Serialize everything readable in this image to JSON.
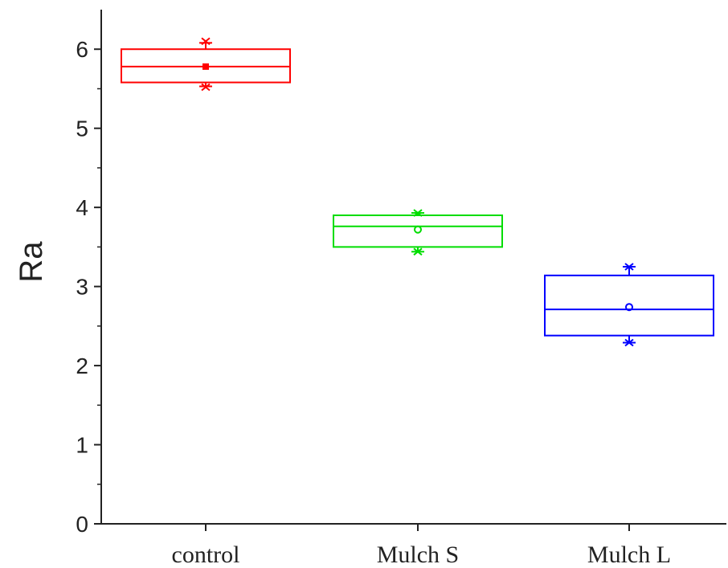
{
  "chart_data": {
    "type": "box",
    "ylabel": "Ra",
    "xlabel": "",
    "ylim": [
      0,
      6.5
    ],
    "y_ticks": [
      "0",
      "1",
      "2",
      "3",
      "4",
      "5",
      "6"
    ],
    "categories": [
      "control",
      "Mulch S",
      "Mulch L"
    ],
    "grid": false,
    "legend": "none",
    "boxes": [
      {
        "category": "control",
        "color": "#ff0000",
        "q1": 5.58,
        "median": 5.78,
        "q3": 6.0,
        "mean": 5.78,
        "whisker_low": 5.53,
        "whisker_high": 6.08,
        "min": 5.52,
        "max": 6.1,
        "mean_marker": "square"
      },
      {
        "category": "Mulch S",
        "color": "#00dd00",
        "q1": 3.5,
        "median": 3.76,
        "q3": 3.9,
        "mean": 3.72,
        "whisker_low": 3.44,
        "whisker_high": 3.93,
        "min": 3.44,
        "max": 3.93,
        "mean_marker": "circle"
      },
      {
        "category": "Mulch L",
        "color": "#0000ff",
        "q1": 2.38,
        "median": 2.71,
        "q3": 3.14,
        "mean": 2.74,
        "whisker_low": 2.29,
        "whisker_high": 3.25,
        "min": 2.29,
        "max": 3.25,
        "mean_marker": "circle"
      }
    ]
  }
}
